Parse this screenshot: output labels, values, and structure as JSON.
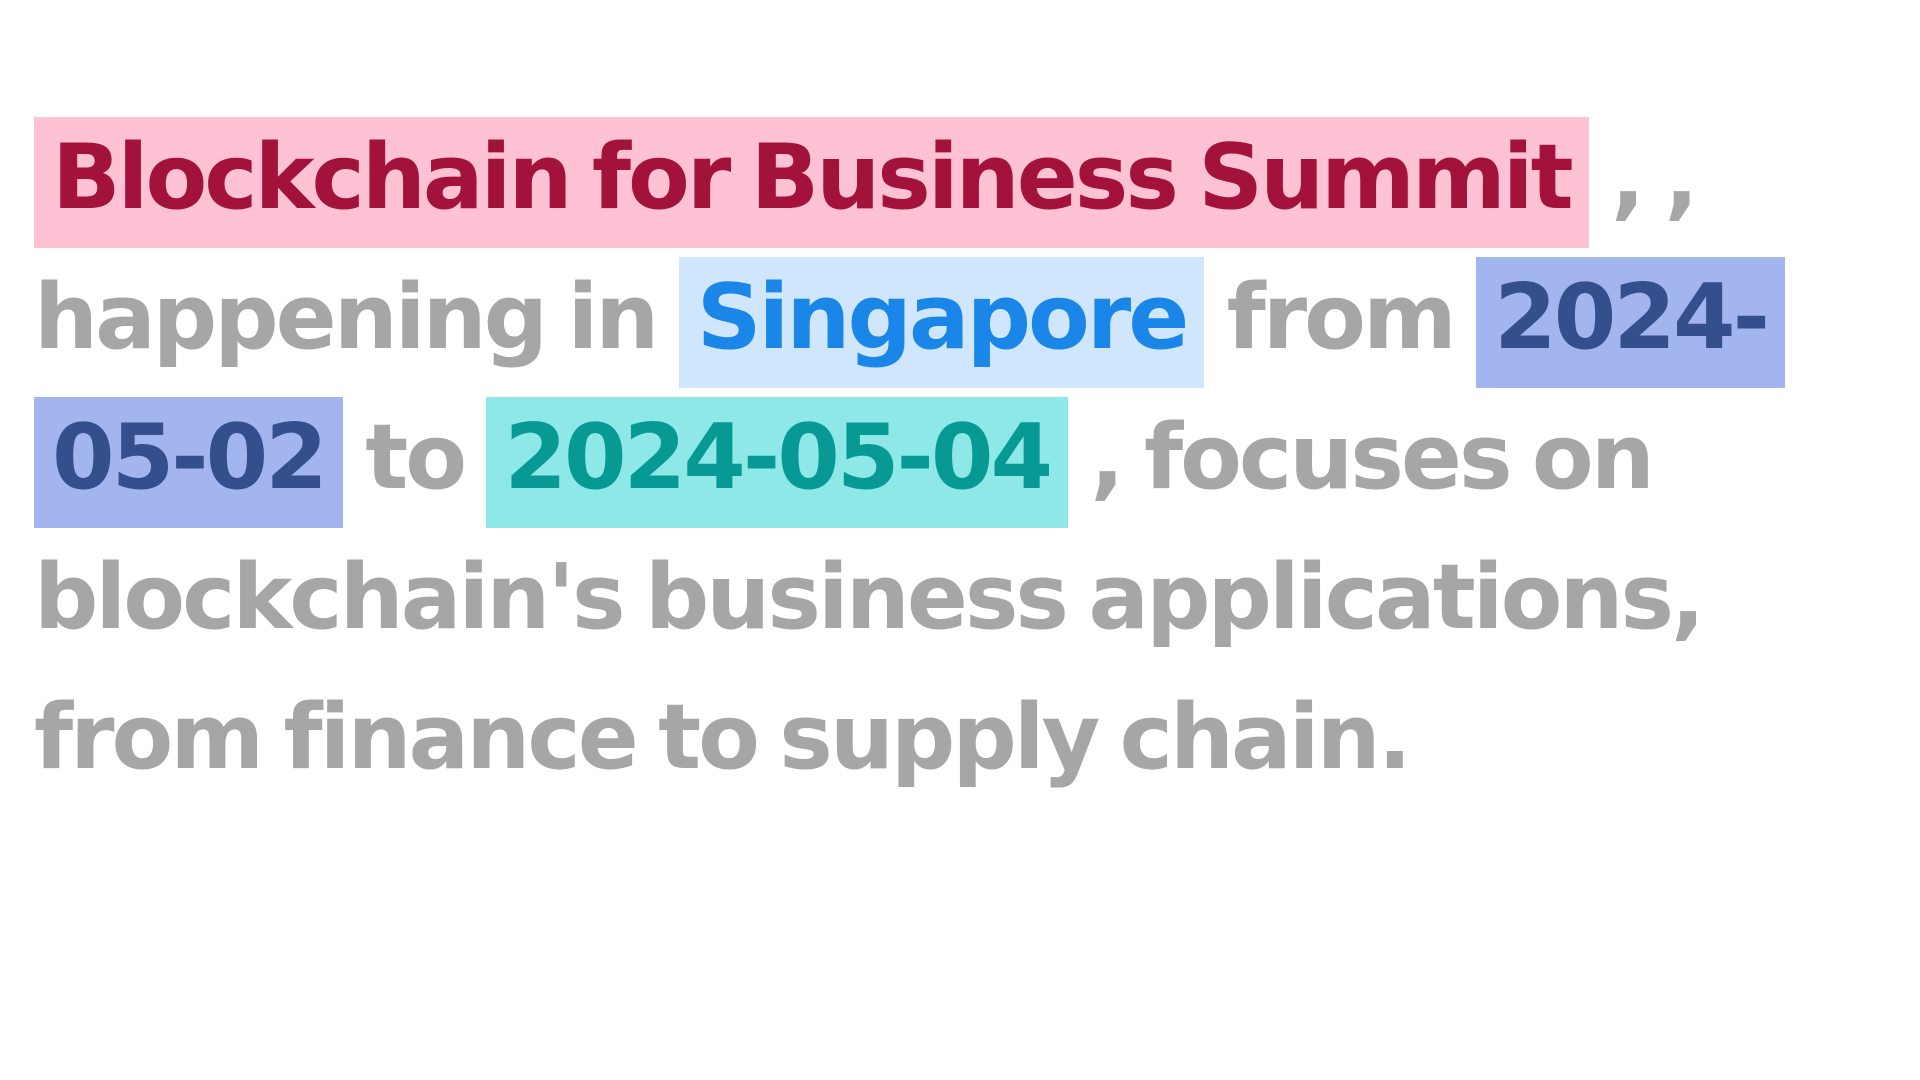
{
  "highlights": {
    "event": {
      "text": "Blockchain for Business Summit",
      "bg_color": "#ffc2d4",
      "text_color": "#a3123a"
    },
    "location": {
      "text": "Singapore",
      "bg_color": "#cfe6fc",
      "text_color": "#1a87e8"
    },
    "start_date": {
      "text": "2024-05-02",
      "bg_color": "#a3b5ee",
      "text_color": "#344f8c"
    },
    "end_date": {
      "text": "2024-05-04",
      "bg_color": "#8ee8e8",
      "text_color": "#079a94"
    }
  },
  "text": {
    "comma_1": ",",
    "comma_2": ",",
    "happening_in": "happening in",
    "from": "from",
    "to": "to",
    "rest": ", focuses on blockchain's business applications, from finance to supply chain."
  },
  "colors": {
    "plain_text": "#a6a6a6",
    "background": "#ffffff"
  }
}
